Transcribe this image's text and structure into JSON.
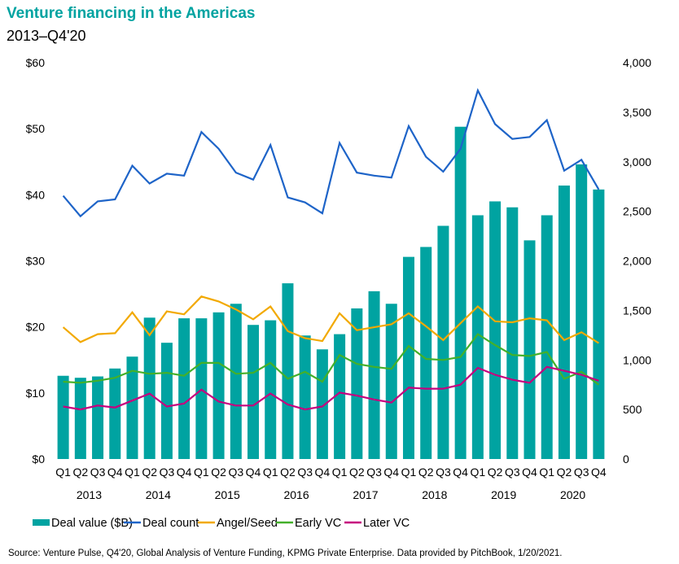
{
  "chart_data": {
    "type": "bar",
    "title": "Venture financing in the Americas",
    "subtitle": "2013–Q4'20",
    "left_axis": {
      "ylim": [
        0,
        60
      ],
      "ticks": [
        "$0",
        "$10",
        "$20",
        "$30",
        "$40",
        "$50",
        "$60"
      ],
      "tick_values": [
        0,
        10,
        20,
        30,
        40,
        50,
        60
      ]
    },
    "right_axis": {
      "ylim": [
        0,
        4000
      ],
      "ticks": [
        "0",
        "500",
        "1,000",
        "1,500",
        "2,000",
        "2,500",
        "3,000",
        "3,500",
        "4,000"
      ],
      "tick_values": [
        0,
        500,
        1000,
        1500,
        2000,
        2500,
        3000,
        3500,
        4000
      ]
    },
    "quarters": [
      "Q1",
      "Q2",
      "Q3",
      "Q4",
      "Q1",
      "Q2",
      "Q3",
      "Q4",
      "Q1",
      "Q2",
      "Q3",
      "Q4",
      "Q1",
      "Q2",
      "Q3",
      "Q4",
      "Q1",
      "Q2",
      "Q3",
      "Q4",
      "Q1",
      "Q2",
      "Q3",
      "Q4",
      "Q1",
      "Q2",
      "Q3",
      "Q4",
      "Q1",
      "Q2",
      "Q3",
      "Q4"
    ],
    "years": [
      "2013",
      "2014",
      "2015",
      "2016",
      "2017",
      "2018",
      "2019",
      "2020"
    ],
    "grid": false,
    "legend_position": "bottom",
    "series": [
      {
        "name": "Deal value ($B)",
        "type": "bar",
        "axis": "left",
        "color": "#00A3A1",
        "values": [
          12.6,
          12.3,
          12.5,
          13.7,
          15.5,
          21.4,
          17.6,
          21.3,
          21.3,
          22.2,
          23.5,
          20.3,
          21.0,
          26.6,
          18.7,
          16.6,
          18.9,
          22.8,
          25.4,
          23.5,
          30.6,
          32.1,
          35.3,
          50.3,
          36.9,
          39.0,
          38.1,
          33.1,
          36.9,
          41.4,
          44.6,
          40.8
        ]
      },
      {
        "name": "Deal count",
        "type": "line",
        "axis": "right",
        "color": "#1E64C8",
        "values": [
          2656,
          2450,
          2600,
          2620,
          2960,
          2780,
          2880,
          2860,
          3300,
          3130,
          2890,
          2820,
          3170,
          2640,
          2590,
          2480,
          3190,
          2890,
          2860,
          2840,
          3360,
          3050,
          2900,
          3130,
          3720,
          3380,
          3230,
          3250,
          3420,
          2910,
          3020,
          2720
        ]
      },
      {
        "name": "Angel/Seed",
        "type": "line",
        "axis": "right",
        "color": "#F2A900",
        "values": [
          1330,
          1180,
          1260,
          1270,
          1480,
          1250,
          1490,
          1460,
          1640,
          1590,
          1510,
          1410,
          1540,
          1290,
          1220,
          1190,
          1470,
          1300,
          1330,
          1360,
          1470,
          1340,
          1200,
          1370,
          1540,
          1390,
          1380,
          1420,
          1400,
          1200,
          1280,
          1170
        ]
      },
      {
        "name": "Early VC",
        "type": "line",
        "axis": "right",
        "color": "#43B02A",
        "values": [
          780,
          770,
          790,
          820,
          890,
          860,
          870,
          840,
          970,
          970,
          860,
          870,
          970,
          810,
          880,
          780,
          1050,
          960,
          930,
          910,
          1140,
          1010,
          1000,
          1030,
          1260,
          1150,
          1050,
          1040,
          1080,
          810,
          880,
          750
        ]
      },
      {
        "name": "Later VC",
        "type": "line",
        "axis": "right",
        "color": "#C6007E",
        "values": [
          530,
          500,
          540,
          520,
          590,
          660,
          530,
          560,
          700,
          580,
          540,
          540,
          660,
          550,
          500,
          530,
          670,
          640,
          600,
          570,
          720,
          710,
          710,
          750,
          920,
          850,
          800,
          770,
          930,
          890,
          850,
          790
        ]
      }
    ],
    "source": "Source: Venture Pulse, Q4'20, Global Analysis of Venture Funding, KPMG Private Enterprise. Data provided by PitchBook, 1/20/2021."
  }
}
